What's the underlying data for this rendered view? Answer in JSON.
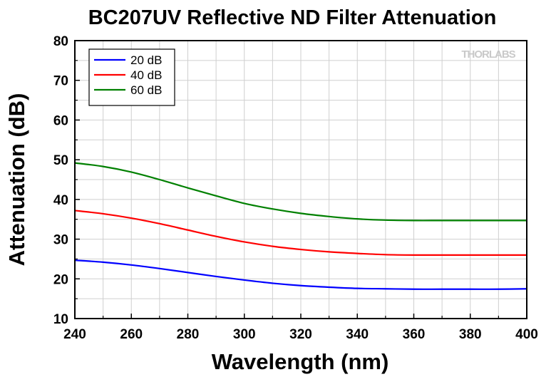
{
  "watermark": "THORLABS",
  "chart_data": {
    "type": "line",
    "title": "BC207UV Reflective ND Filter Attenuation",
    "xlabel": "Wavelength (nm)",
    "ylabel": "Attenuation (dB)",
    "xlim": [
      240,
      400
    ],
    "ylim": [
      10,
      80
    ],
    "xticks": [
      240,
      260,
      280,
      300,
      320,
      340,
      360,
      380,
      400
    ],
    "yticks": [
      10,
      20,
      30,
      40,
      50,
      60,
      70,
      80
    ],
    "grid": true,
    "legend": "top-left",
    "x": [
      240,
      250,
      260,
      270,
      280,
      290,
      300,
      310,
      320,
      330,
      340,
      350,
      360,
      370,
      380,
      390,
      400
    ],
    "series": [
      {
        "name": "20 dB",
        "color": "#0000ff",
        "values": [
          24.7,
          24.2,
          23.5,
          22.6,
          21.6,
          20.6,
          19.7,
          18.9,
          18.3,
          17.9,
          17.6,
          17.5,
          17.4,
          17.4,
          17.4,
          17.4,
          17.5
        ]
      },
      {
        "name": "40 dB",
        "color": "#ff0000",
        "values": [
          37.2,
          36.4,
          35.3,
          33.9,
          32.3,
          30.7,
          29.3,
          28.2,
          27.4,
          26.8,
          26.4,
          26.1,
          26.0,
          26.0,
          26.0,
          26.0,
          26.0
        ]
      },
      {
        "name": "60 dB",
        "color": "#008000",
        "values": [
          49.2,
          48.3,
          46.9,
          45.0,
          42.9,
          40.9,
          39.0,
          37.6,
          36.5,
          35.7,
          35.1,
          34.8,
          34.7,
          34.7,
          34.7,
          34.7,
          34.7
        ]
      }
    ]
  }
}
